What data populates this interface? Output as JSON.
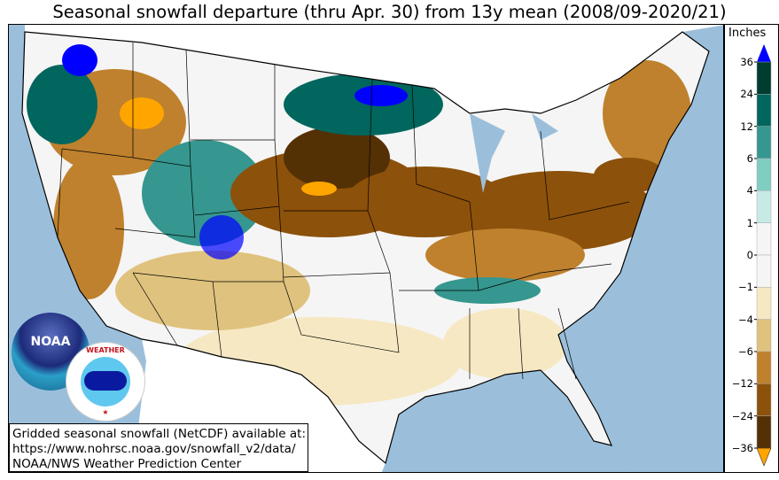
{
  "title": "Seasonal snowfall departure (thru Apr. 30) from 13y mean (2008/09-2020/21)",
  "info_box": {
    "lines": [
      "Gridded seasonal snowfall (NetCDF) available at:",
      "https://www.nohrsc.noaa.gov/snowfall_v2/data/",
      "NOAA/NWS Weather Prediction Center"
    ]
  },
  "logos": [
    {
      "name": "noaa-logo",
      "text": "NOAA"
    },
    {
      "name": "nws-logo",
      "text": "NATIONAL WEATHER SERVICE"
    }
  ],
  "colorbar": {
    "title": "Inches",
    "tick_labels": [
      "36",
      "24",
      "12",
      "6",
      "4",
      "1",
      "0",
      "−1",
      "−4",
      "−6",
      "−12",
      "−24",
      "−36"
    ],
    "bin_colors": [
      "#003c30",
      "#01665e",
      "#35978f",
      "#80cdc1",
      "#c7eae5",
      "#f5f5f5",
      "#f5f5f5",
      "#f6e8c3",
      "#dfc27d",
      "#bf812d",
      "#8c510a",
      "#543005"
    ],
    "over_color": "#0000ff",
    "under_color": "#ffa500"
  },
  "colors": {
    "ocean": "#9bbfdb",
    "land": "#ffffff",
    "lakes": "#9bbfdb"
  }
}
